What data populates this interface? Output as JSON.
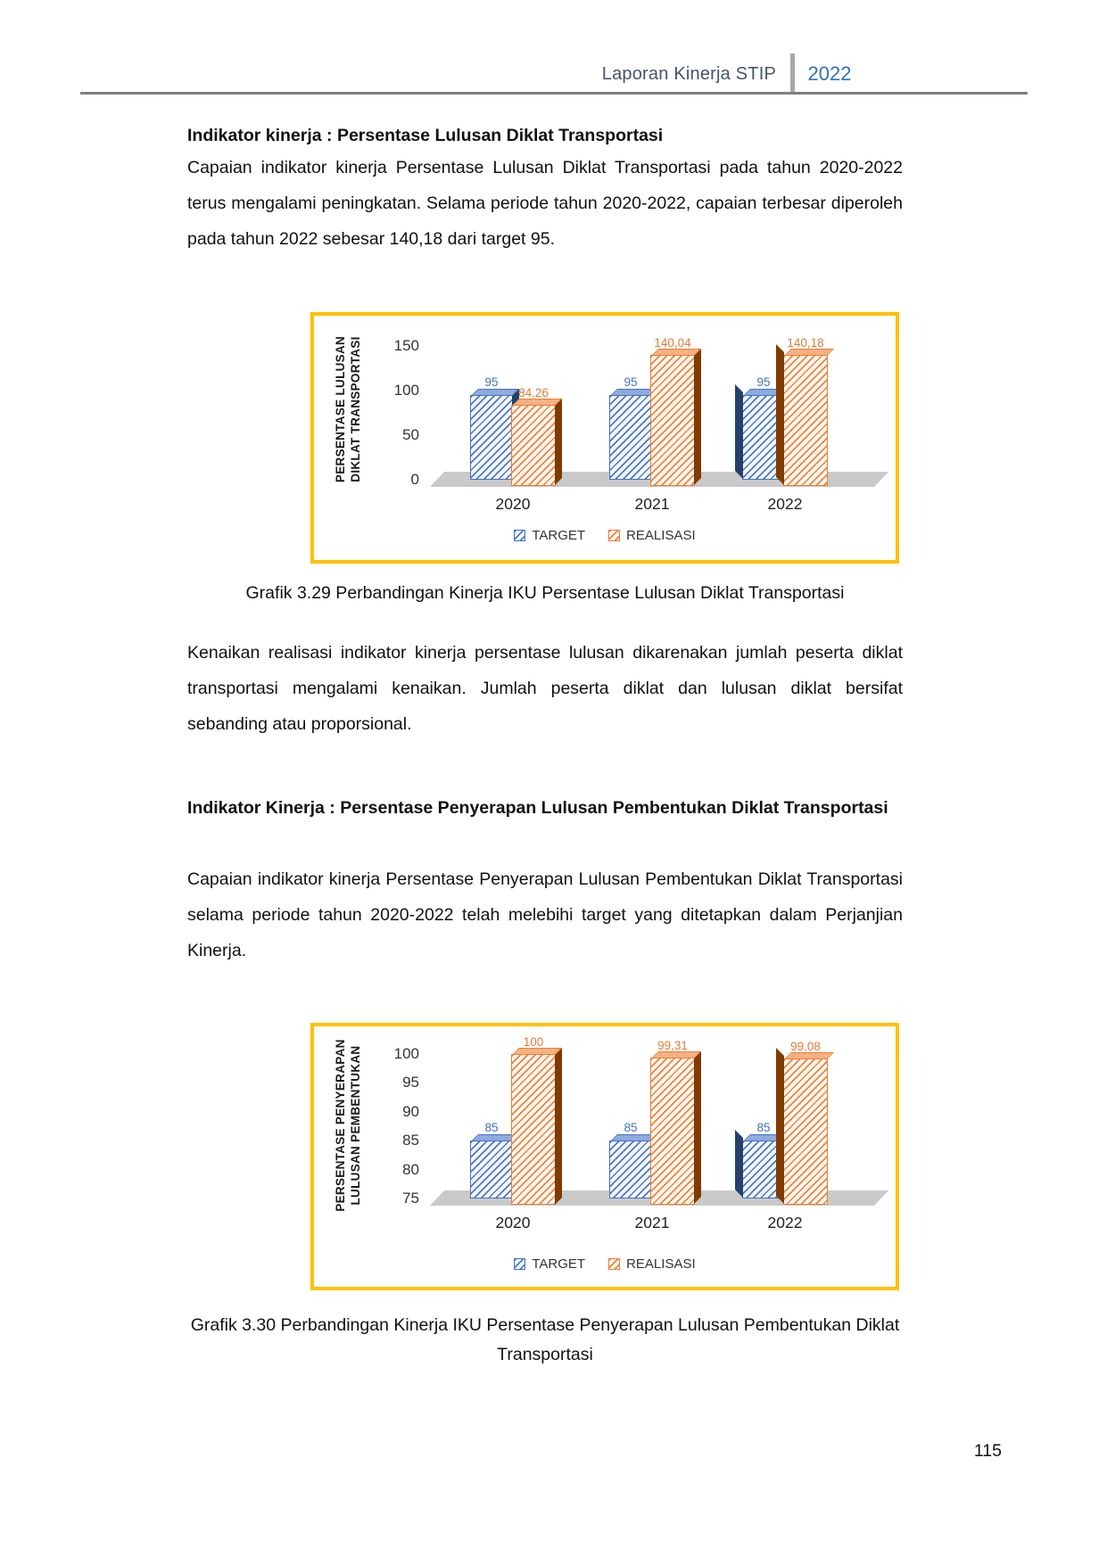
{
  "header": {
    "title": "Laporan Kinerja STIP",
    "year": "2022"
  },
  "content": {
    "heading1": "Indikator kinerja : Persentase Lulusan Diklat Transportasi",
    "para1": "Capaian indikator kinerja Persentase Lulusan Diklat Transportasi pada tahun 2020-2022 terus mengalami peningkatan. Selama periode tahun 2020-2022, capaian terbesar diperoleh pada tahun 2022 sebesar 140,18 dari target 95.",
    "caption1": "Grafik 3.29 Perbandingan Kinerja IKU Persentase Lulusan Diklat Transportasi",
    "para2": "Kenaikan realisasi indikator kinerja persentase lulusan dikarenakan jumlah peserta diklat transportasi mengalami kenaikan. Jumlah peserta diklat dan lulusan diklat bersifat sebanding atau proporsional.",
    "heading2": "Indikator Kinerja : Persentase Penyerapan Lulusan Pembentukan Diklat Transportasi",
    "para3": "Capaian indikator kinerja Persentase Penyerapan Lulusan Pembentukan Diklat Transportasi selama periode tahun 2020-2022 telah melebihi target yang ditetapkan dalam Perjanjian Kinerja.",
    "caption2": "Grafik 3.30 Perbandingan Kinerja IKU Persentase Penyerapan Lulusan Pembentukan Diklat Transportasi"
  },
  "page_number": "115",
  "colors": {
    "chart_border": "#FFC000",
    "target_series": "#4472C4",
    "realisasi_series": "#ED7D31",
    "header_title": "#44546A",
    "header_year": "#2E74B5"
  },
  "chart_data": [
    {
      "type": "bar",
      "title": "",
      "categories": [
        "2020",
        "2021",
        "2022"
      ],
      "series": [
        {
          "name": "TARGET",
          "values": [
            95,
            95,
            95
          ],
          "labels": [
            "95",
            "95",
            "95"
          ],
          "color": "#4472C4"
        },
        {
          "name": "REALISASI",
          "values": [
            84.26,
            140.04,
            140.18
          ],
          "labels": [
            "84,26",
            "140,04",
            "140,18"
          ],
          "color": "#ED7D31"
        }
      ],
      "xlabel": "",
      "ylabel": "PERSENTASE LULUSAN DIKLAT TRANSPORTASI",
      "ylabel_lines": [
        "PERSENTASE LULUSAN",
        "DIKLAT TRANSPORTASI"
      ],
      "yticks": [
        0,
        50,
        100,
        150
      ],
      "ylim": [
        0,
        150
      ],
      "grid": false,
      "legend": [
        "TARGET",
        "REALISASI"
      ],
      "legend_position": "bottom"
    },
    {
      "type": "bar",
      "title": "",
      "categories": [
        "2020",
        "2021",
        "2022"
      ],
      "series": [
        {
          "name": "TARGET",
          "values": [
            85,
            85,
            85
          ],
          "labels": [
            "85",
            "85",
            "85"
          ],
          "color": "#4472C4"
        },
        {
          "name": "REALISASI",
          "values": [
            100,
            99.31,
            99.08
          ],
          "labels": [
            "100",
            "99,31",
            "99,08"
          ],
          "color": "#ED7D31"
        }
      ],
      "xlabel": "",
      "ylabel": "PERSENTASE PENYERAPAN LULUSAN PEMBENTUKAN",
      "ylabel_lines": [
        "PERSENTASE PENYERAPAN",
        "LULUSAN PEMBENTUKAN"
      ],
      "yticks": [
        75,
        80,
        85,
        90,
        95,
        100
      ],
      "ylim": [
        75,
        100
      ],
      "grid": false,
      "legend": [
        "TARGET",
        "REALISASI"
      ],
      "legend_position": "bottom"
    }
  ]
}
